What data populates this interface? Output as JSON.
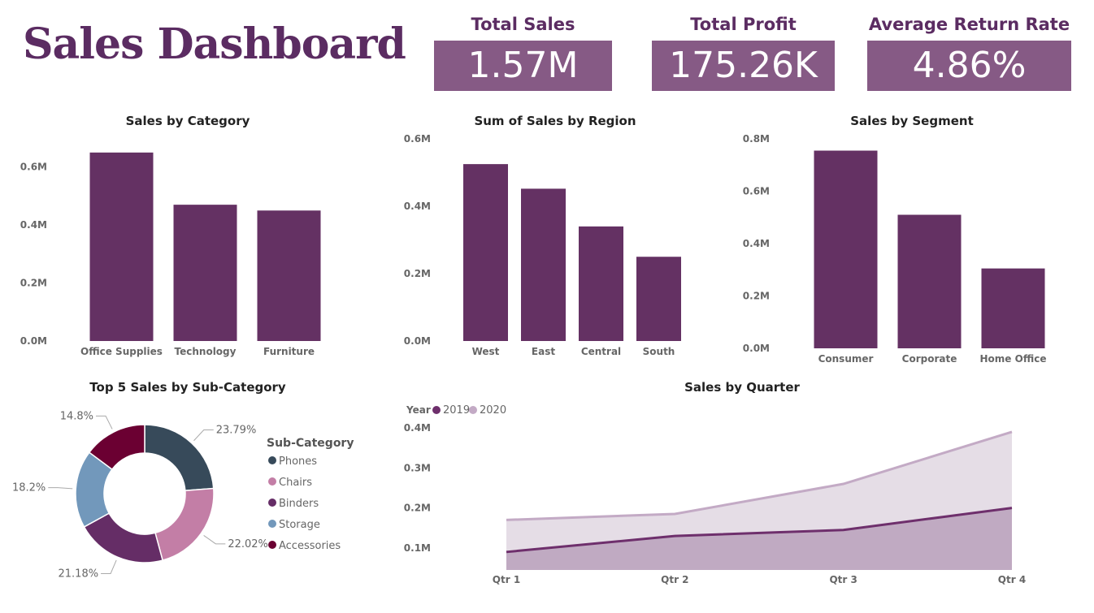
{
  "dashboard": {
    "title": "Sales Dashboard"
  },
  "kpis": [
    {
      "label": "Total Sales",
      "value": "1.57M"
    },
    {
      "label": "Total Profit",
      "value": "175.26K"
    },
    {
      "label": "Average Return Rate",
      "value": "4.86%"
    }
  ],
  "colors": {
    "bar": "#643163",
    "kpi_bg": "#865a85",
    "title": "#5b2c62",
    "area_2019": "#c0aac2",
    "line_2019": "#6e2f6c",
    "area_2020": "#e5dde6",
    "line_2020": "#c3aac5"
  },
  "chart_data": [
    {
      "id": "category",
      "type": "bar",
      "title": "Sales by Category",
      "categories": [
        "Office Supplies",
        "Technology",
        "Furniture"
      ],
      "values": [
        0.65,
        0.47,
        0.45
      ],
      "ylim": [
        0,
        0.7
      ],
      "yticks": [
        0.0,
        0.2,
        0.4,
        0.6
      ],
      "ytick_labels": [
        "0.0M",
        "0.2M",
        "0.4M",
        "0.6M"
      ],
      "grid": false
    },
    {
      "id": "region",
      "type": "bar",
      "title": "Sum of Sales by Region",
      "categories": [
        "West",
        "East",
        "Central",
        "South"
      ],
      "values": [
        0.525,
        0.452,
        0.34,
        0.25
      ],
      "ylim": [
        0,
        0.6
      ],
      "yticks": [
        0.0,
        0.2,
        0.4,
        0.6
      ],
      "ytick_labels": [
        "0.0M",
        "0.2M",
        "0.4M",
        "0.6M"
      ],
      "grid": false
    },
    {
      "id": "segment",
      "type": "bar",
      "title": "Sales by Segment",
      "categories": [
        "Consumer",
        "Corporate",
        "Home Office"
      ],
      "values": [
        0.755,
        0.51,
        0.305
      ],
      "ylim": [
        0,
        0.8
      ],
      "yticks": [
        0.0,
        0.2,
        0.4,
        0.6,
        0.8
      ],
      "ytick_labels": [
        "0.0M",
        "0.2M",
        "0.4M",
        "0.6M",
        "0.8M"
      ],
      "grid": false
    },
    {
      "id": "subcategory",
      "type": "pie",
      "title": "Top 5 Sales by Sub-Category",
      "legend_title": "Sub-Category",
      "legend_position": "right",
      "slices": [
        {
          "name": "Phones",
          "value": 23.79,
          "label": "23.79%",
          "color": "#374a5a"
        },
        {
          "name": "Chairs",
          "value": 22.02,
          "label": "22.02%",
          "color": "#c37ea6"
        },
        {
          "name": "Binders",
          "value": 21.18,
          "label": "21.18%",
          "color": "#652d66"
        },
        {
          "name": "Storage",
          "value": 18.2,
          "label": "18.2%",
          "color": "#7298bb"
        },
        {
          "name": "Accessories",
          "value": 14.8,
          "label": "14.8%",
          "color": "#6b0032"
        }
      ]
    },
    {
      "id": "quarter",
      "type": "area",
      "title": "Sales by Quarter",
      "legend_title": "Year",
      "legend_position": "top-left",
      "categories": [
        "Qtr 1",
        "Qtr 2",
        "Qtr 3",
        "Qtr 4"
      ],
      "series": [
        {
          "name": "2019",
          "values": [
            0.09,
            0.13,
            0.145,
            0.2
          ]
        },
        {
          "name": "2020",
          "values": [
            0.17,
            0.185,
            0.26,
            0.39
          ]
        }
      ],
      "ylim": [
        0.045,
        0.4
      ],
      "yticks": [
        0.1,
        0.2,
        0.3,
        0.4
      ],
      "ytick_labels": [
        "0.1M",
        "0.2M",
        "0.3M",
        "0.4M"
      ],
      "grid": false
    }
  ]
}
